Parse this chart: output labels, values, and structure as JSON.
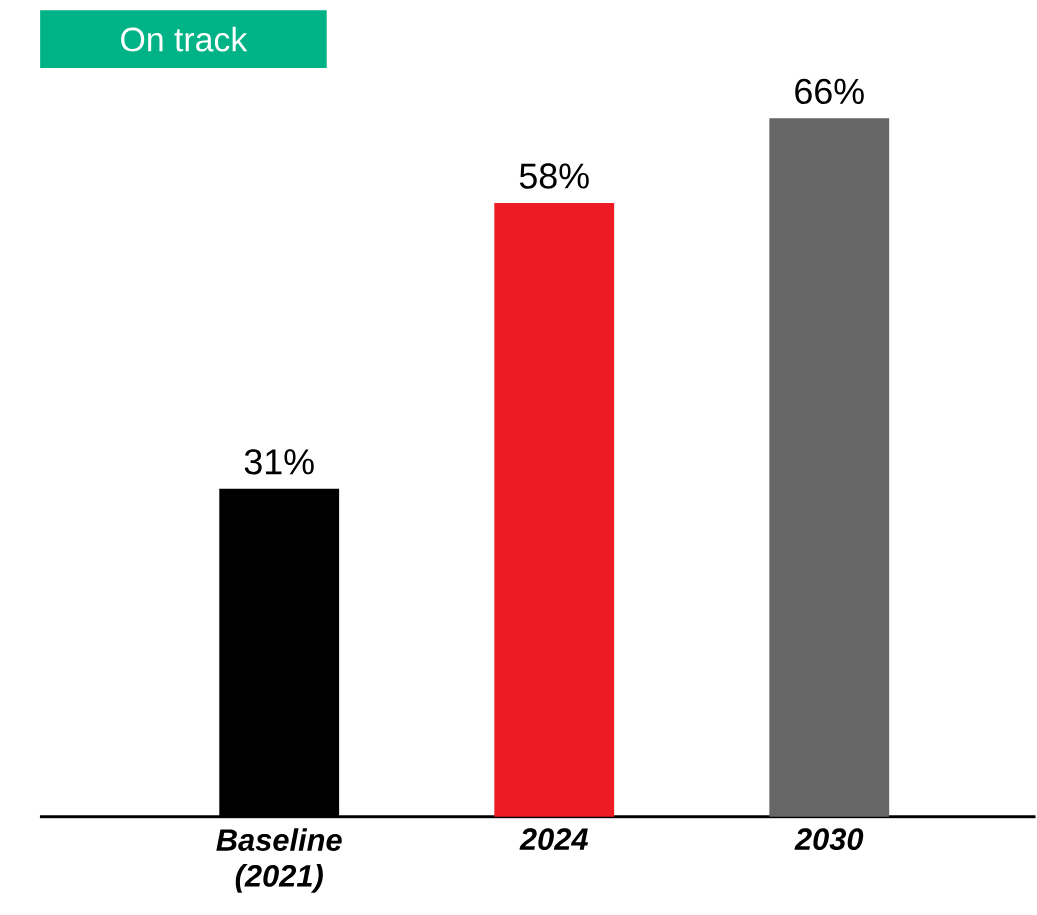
{
  "chart_data": {
    "type": "bar",
    "categories": [
      "Baseline (2021)",
      "2024",
      "2030"
    ],
    "values": [
      31,
      58,
      66
    ],
    "colors": [
      "#000000",
      "#ed1c24",
      "#666666"
    ],
    "value_labels": [
      "31%",
      "58%",
      "66%"
    ],
    "annotations": [
      "On track"
    ]
  }
}
